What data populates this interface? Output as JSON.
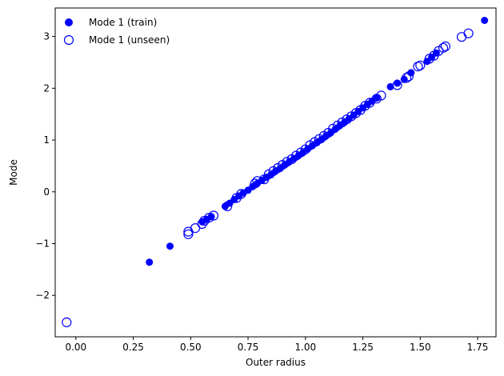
{
  "chart_data": {
    "type": "scatter",
    "xlabel": "Outer radius",
    "ylabel": "Mode",
    "xlim": [
      -0.09,
      1.83
    ],
    "ylim": [
      -2.8,
      3.55
    ],
    "xticks": [
      "0.00",
      "0.25",
      "0.50",
      "0.75",
      "1.00",
      "1.25",
      "1.50",
      "1.75"
    ],
    "yticks": [
      "−2",
      "−1",
      "0",
      "1",
      "2",
      "3"
    ],
    "xtick_values": [
      0,
      0.25,
      0.5,
      0.75,
      1.0,
      1.25,
      1.5,
      1.75
    ],
    "ytick_values": [
      -2,
      -1,
      0,
      1,
      2,
      3
    ],
    "legend_position": "top-left",
    "color": "#0000ff",
    "series": [
      {
        "name": "Mode 1 (train)",
        "marker": "filled-circle",
        "points": [
          [
            0.32,
            -1.36
          ],
          [
            0.41,
            -1.05
          ],
          [
            0.55,
            -0.58
          ],
          [
            0.57,
            -0.53
          ],
          [
            0.59,
            -0.48
          ],
          [
            0.65,
            -0.28
          ],
          [
            0.67,
            -0.22
          ],
          [
            0.69,
            -0.15
          ],
          [
            0.71,
            -0.08
          ],
          [
            0.73,
            -0.02
          ],
          [
            0.75,
            0.03
          ],
          [
            0.77,
            0.1
          ],
          [
            0.79,
            0.16
          ],
          [
            0.81,
            0.22
          ],
          [
            0.83,
            0.28
          ],
          [
            0.85,
            0.33
          ],
          [
            0.87,
            0.4
          ],
          [
            0.89,
            0.45
          ],
          [
            0.91,
            0.52
          ],
          [
            0.93,
            0.58
          ],
          [
            0.95,
            0.64
          ],
          [
            0.97,
            0.7
          ],
          [
            0.99,
            0.76
          ],
          [
            1.01,
            0.83
          ],
          [
            1.03,
            0.89
          ],
          [
            1.05,
            0.95
          ],
          [
            1.07,
            1.01
          ],
          [
            1.09,
            1.08
          ],
          [
            1.11,
            1.14
          ],
          [
            1.13,
            1.21
          ],
          [
            1.15,
            1.28
          ],
          [
            1.17,
            1.34
          ],
          [
            1.19,
            1.41
          ],
          [
            1.21,
            1.48
          ],
          [
            1.23,
            1.55
          ],
          [
            1.25,
            1.62
          ],
          [
            1.27,
            1.69
          ],
          [
            1.29,
            1.75
          ],
          [
            1.31,
            1.81
          ],
          [
            1.37,
            2.03
          ],
          [
            1.4,
            2.1
          ],
          [
            1.43,
            2.17
          ],
          [
            1.46,
            2.3
          ],
          [
            1.53,
            2.52
          ],
          [
            1.55,
            2.6
          ],
          [
            1.57,
            2.68
          ],
          [
            1.78,
            3.31
          ]
        ]
      },
      {
        "name": "Mode 1 (unseen)",
        "marker": "open-circle",
        "points": [
          [
            -0.04,
            -2.52
          ],
          [
            0.49,
            -0.77
          ],
          [
            0.49,
            -0.82
          ],
          [
            0.52,
            -0.7
          ],
          [
            0.55,
            -0.62
          ],
          [
            0.56,
            -0.56
          ],
          [
            0.58,
            -0.5
          ],
          [
            0.6,
            -0.46
          ],
          [
            0.66,
            -0.28
          ],
          [
            0.7,
            -0.12
          ],
          [
            0.72,
            -0.04
          ],
          [
            0.78,
            0.16
          ],
          [
            0.79,
            0.21
          ],
          [
            0.82,
            0.24
          ],
          [
            0.84,
            0.34
          ],
          [
            0.86,
            0.4
          ],
          [
            0.88,
            0.46
          ],
          [
            0.9,
            0.52
          ],
          [
            0.92,
            0.58
          ],
          [
            0.94,
            0.63
          ],
          [
            0.96,
            0.7
          ],
          [
            0.98,
            0.76
          ],
          [
            1.0,
            0.82
          ],
          [
            1.02,
            0.9
          ],
          [
            1.04,
            0.96
          ],
          [
            1.06,
            1.02
          ],
          [
            1.08,
            1.08
          ],
          [
            1.1,
            1.14
          ],
          [
            1.12,
            1.22
          ],
          [
            1.14,
            1.28
          ],
          [
            1.16,
            1.34
          ],
          [
            1.18,
            1.4
          ],
          [
            1.2,
            1.46
          ],
          [
            1.22,
            1.52
          ],
          [
            1.24,
            1.58
          ],
          [
            1.26,
            1.66
          ],
          [
            1.28,
            1.72
          ],
          [
            1.31,
            1.8
          ],
          [
            1.33,
            1.86
          ],
          [
            1.4,
            2.06
          ],
          [
            1.44,
            2.2
          ],
          [
            1.45,
            2.23
          ],
          [
            1.49,
            2.42
          ],
          [
            1.5,
            2.44
          ],
          [
            1.54,
            2.57
          ],
          [
            1.56,
            2.63
          ],
          [
            1.58,
            2.72
          ],
          [
            1.6,
            2.78
          ],
          [
            1.61,
            2.81
          ],
          [
            1.68,
            2.99
          ],
          [
            1.71,
            3.06
          ]
        ]
      }
    ]
  }
}
